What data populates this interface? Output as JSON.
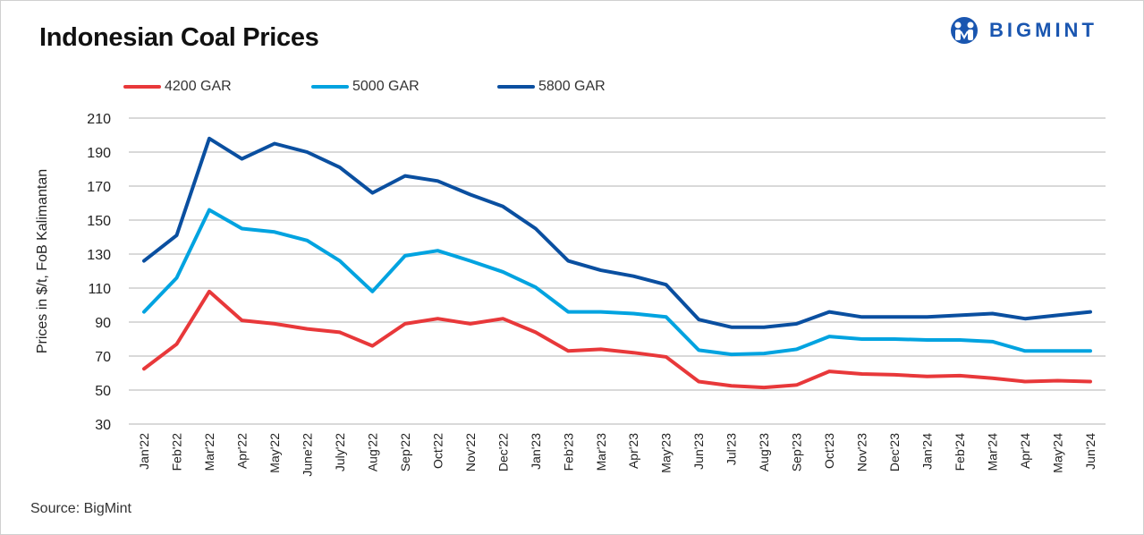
{
  "logo_text": "BIGMINT",
  "source": "Source: BigMint",
  "chart_data": {
    "type": "line",
    "title": "Indonesian Coal Prices",
    "xlabel": "",
    "ylabel": "Prices in $/t, FoB Kalimantan",
    "ylim": [
      30,
      210
    ],
    "yticks": [
      210,
      190,
      170,
      150,
      130,
      110,
      90,
      70,
      50,
      30
    ],
    "grid": true,
    "legend_position": "top-left",
    "categories": [
      "Jan'22",
      "Feb'22",
      "Mar'22",
      "Apr'22",
      "May'22",
      "June'22",
      "July'22",
      "Aug'22",
      "Sep'22",
      "Oct'22",
      "Nov'22",
      "Dec'22",
      "Jan'23",
      "Feb'23",
      "Mar'23",
      "Apr'23",
      "May'23",
      "Jun'23",
      "Jul'23",
      "Aug'23",
      "Sep'23",
      "Oct'23",
      "Nov'23",
      "Dec'23",
      "Jan'24",
      "Feb'24",
      "Mar'24",
      "Apr'24",
      "May'24",
      "Jun'24"
    ],
    "series": [
      {
        "name": "4200 GAR",
        "color": "#e8383a",
        "values": [
          62.5,
          77,
          108,
          91,
          89,
          86,
          84,
          76,
          89,
          92,
          89,
          92,
          84,
          73,
          74,
          72,
          69.5,
          55,
          52.5,
          51.5,
          53,
          61,
          59.5,
          59,
          58,
          58.5,
          57,
          55,
          55.5,
          55
        ]
      },
      {
        "name": "5000 GAR",
        "color": "#00a3e0",
        "values": [
          96,
          116,
          156,
          145,
          143,
          138,
          126,
          108,
          129,
          132,
          126,
          119.5,
          110.5,
          96,
          96,
          95,
          93,
          73.5,
          71,
          71.5,
          74,
          81.5,
          80,
          80,
          79.5,
          79.5,
          78.5,
          73,
          73,
          73
        ]
      },
      {
        "name": "5800 GAR",
        "color": "#0a4fa0",
        "values": [
          126,
          141,
          198,
          186,
          195,
          190,
          181,
          166,
          176,
          173,
          165,
          158,
          145,
          126,
          120.5,
          117,
          112,
          91.5,
          87,
          87,
          89,
          96,
          93,
          93,
          93,
          94,
          95,
          92,
          94,
          96
        ]
      }
    ]
  }
}
